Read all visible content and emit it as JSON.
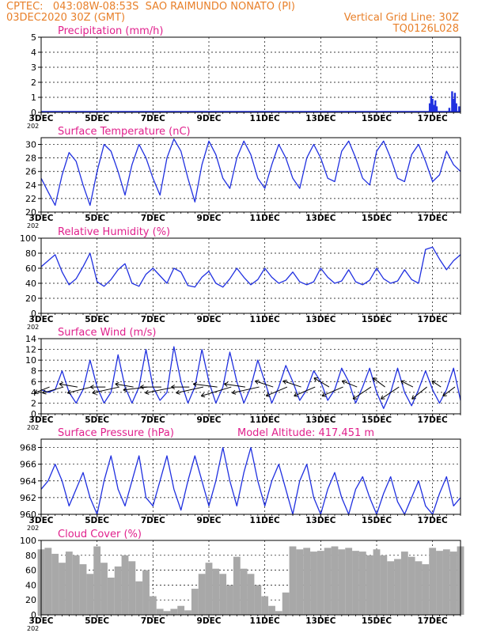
{
  "header": {
    "line1_left": "CPTEC:   043:08W-08:53S  SAO RAIMUNDO NONATO (PI)",
    "line2_left": "03DEC2020 30Z (GMT)",
    "line2_right": "Vertical Grid Line: 30Z",
    "line3_right": "TQ0126L028",
    "color": "#e8802a"
  },
  "colors": {
    "title": "#e0208c",
    "line": "#2030e0",
    "bars_precip": "#2030e0",
    "bars_cloud": "#a8a8a8",
    "vectors": "#000000"
  },
  "x_tick_labels": [
    "3DEC",
    "5DEC",
    "7DEC",
    "9DEC",
    "11DEC",
    "13DEC",
    "15DEC",
    "17DEC"
  ],
  "year_fragment": "202",
  "chart_data": [
    {
      "type": "bar",
      "title": "Precipitation (mm/h)",
      "ylim": [
        0,
        5
      ],
      "yticks": [
        "0",
        "1",
        "2",
        "3",
        "4",
        "5"
      ],
      "x_range_days": [
        3,
        18
      ],
      "values": [
        {
          "day": 16.9,
          "v": 0.6
        },
        {
          "day": 16.95,
          "v": 1.1
        },
        {
          "day": 17.0,
          "v": 0.9
        },
        {
          "day": 17.05,
          "v": 0.5
        },
        {
          "day": 17.1,
          "v": 0.8
        },
        {
          "day": 17.15,
          "v": 0.4
        },
        {
          "day": 17.6,
          "v": 0.3
        },
        {
          "day": 17.7,
          "v": 1.4
        },
        {
          "day": 17.75,
          "v": 0.9
        },
        {
          "day": 17.8,
          "v": 1.3
        },
        {
          "day": 17.85,
          "v": 0.6
        },
        {
          "day": 17.95,
          "v": 0.4
        }
      ]
    },
    {
      "type": "line",
      "title": "Surface Temperature (nC)",
      "ylim": [
        20,
        31
      ],
      "yticks": [
        "20",
        "22",
        "24",
        "26",
        "28",
        "30"
      ],
      "x_range_days": [
        3,
        18
      ],
      "x": [
        3.0,
        3.25,
        3.5,
        3.75,
        4.0,
        4.25,
        4.5,
        4.75,
        5.0,
        5.25,
        5.5,
        5.75,
        6.0,
        6.25,
        6.5,
        6.75,
        7.0,
        7.25,
        7.5,
        7.75,
        8.0,
        8.25,
        8.5,
        8.75,
        9.0,
        9.25,
        9.5,
        9.75,
        10.0,
        10.25,
        10.5,
        10.75,
        11.0,
        11.25,
        11.5,
        11.75,
        12.0,
        12.25,
        12.5,
        12.75,
        13.0,
        13.25,
        13.5,
        13.75,
        14.0,
        14.25,
        14.5,
        14.75,
        15.0,
        15.25,
        15.5,
        15.75,
        16.0,
        16.25,
        16.5,
        16.75,
        17.0,
        17.25,
        17.5,
        17.75,
        18.0
      ],
      "y": [
        25,
        23,
        21,
        25.5,
        28.8,
        27.5,
        24,
        21,
        26,
        30,
        29,
        26,
        22.5,
        27,
        30,
        28,
        25,
        22.5,
        28,
        30.8,
        29,
        25,
        21.5,
        27,
        30.5,
        28.5,
        25,
        23.5,
        28,
        30.5,
        28.5,
        25,
        23.5,
        27,
        30,
        28,
        25,
        23.5,
        28,
        30,
        28,
        25,
        24.5,
        29,
        30.5,
        28,
        25,
        24,
        29,
        30.5,
        28,
        25,
        24.5,
        28.5,
        30,
        27.5,
        24.5,
        25.5,
        29,
        27,
        26
      ]
    },
    {
      "type": "line",
      "title": "Relative Humidity (%)",
      "ylim": [
        0,
        100
      ],
      "yticks": [
        "0",
        "20",
        "40",
        "60",
        "80",
        "100"
      ],
      "x_range_days": [
        3,
        18
      ],
      "x": [
        3.0,
        3.25,
        3.5,
        3.75,
        4.0,
        4.25,
        4.5,
        4.75,
        5.0,
        5.25,
        5.5,
        5.75,
        6.0,
        6.25,
        6.5,
        6.75,
        7.0,
        7.25,
        7.5,
        7.75,
        8.0,
        8.25,
        8.5,
        8.75,
        9.0,
        9.25,
        9.5,
        9.75,
        10.0,
        10.25,
        10.5,
        10.75,
        11.0,
        11.25,
        11.5,
        11.75,
        12.0,
        12.25,
        12.5,
        12.75,
        13.0,
        13.25,
        13.5,
        13.75,
        14.0,
        14.25,
        14.5,
        14.75,
        15.0,
        15.25,
        15.5,
        15.75,
        16.0,
        16.25,
        16.5,
        16.75,
        17.0,
        17.25,
        17.5,
        17.75,
        18.0
      ],
      "y": [
        62,
        70,
        78,
        55,
        38,
        46,
        62,
        80,
        42,
        36,
        45,
        58,
        66,
        40,
        36,
        52,
        60,
        50,
        40,
        60,
        55,
        37,
        35,
        48,
        56,
        40,
        35,
        46,
        60,
        48,
        38,
        45,
        60,
        48,
        40,
        44,
        55,
        42,
        38,
        42,
        60,
        48,
        40,
        43,
        58,
        42,
        38,
        44,
        60,
        46,
        40,
        43,
        58,
        45,
        40,
        85,
        88,
        72,
        58,
        70,
        78
      ]
    },
    {
      "type": "line",
      "title": "Surface Wind (m/s)",
      "ylim": [
        0,
        14
      ],
      "yticks": [
        "0",
        "2",
        "4",
        "6",
        "8",
        "10",
        "12",
        "14"
      ],
      "x_range_days": [
        3,
        18
      ],
      "x": [
        3.0,
        3.25,
        3.5,
        3.75,
        4.0,
        4.25,
        4.5,
        4.75,
        5.0,
        5.25,
        5.5,
        5.75,
        6.0,
        6.25,
        6.5,
        6.75,
        7.0,
        7.25,
        7.5,
        7.75,
        8.0,
        8.25,
        8.5,
        8.75,
        9.0,
        9.25,
        9.5,
        9.75,
        10.0,
        10.25,
        10.5,
        10.75,
        11.0,
        11.25,
        11.5,
        11.75,
        12.0,
        12.25,
        12.5,
        12.75,
        13.0,
        13.25,
        13.5,
        13.75,
        14.0,
        14.25,
        14.5,
        14.75,
        15.0,
        15.25,
        15.5,
        15.75,
        16.0,
        16.25,
        16.5,
        16.75,
        17.0,
        17.25,
        17.5,
        17.75,
        18.0
      ],
      "y": [
        4.5,
        4,
        4.5,
        8,
        4,
        2,
        4.5,
        10,
        5,
        2,
        4,
        11,
        5,
        2,
        5,
        12,
        5,
        2.5,
        4,
        12.5,
        6,
        2,
        5,
        12,
        6,
        2,
        5,
        11.5,
        6,
        2,
        5,
        10,
        6,
        2,
        5,
        9,
        6,
        2.5,
        4.5,
        8,
        6,
        2.5,
        4.5,
        8.5,
        6,
        2,
        5,
        8.5,
        4,
        1,
        4,
        8.5,
        4,
        1.5,
        4.5,
        8,
        4.5,
        2,
        4.5,
        8.5,
        2.5
      ],
      "vectors": {
        "days": [
          3.3,
          3.8,
          4.3,
          4.8,
          5.3,
          5.8,
          6.3,
          6.8,
          7.3,
          7.8,
          8.3,
          8.8,
          9.3,
          9.8,
          10.3,
          10.8,
          11.3,
          11.8,
          12.3,
          12.8,
          13.3,
          13.8,
          14.3,
          14.8,
          15.3,
          15.8,
          16.3,
          16.8,
          17.3,
          17.8
        ],
        "u": [
          -0.5,
          -0.7,
          -0.6,
          -0.8,
          -0.5,
          -0.9,
          -0.6,
          -0.8,
          -0.7,
          -1.0,
          -0.6,
          -0.9,
          -0.8,
          -1.0,
          -0.7,
          -0.9,
          -0.6,
          -0.7,
          -0.6,
          -0.7,
          -0.5,
          -0.7,
          -0.5,
          -0.6,
          -0.4,
          -0.6,
          -0.4,
          -0.5,
          -0.3,
          -0.4
        ],
        "v": [
          -0.2,
          -0.2,
          0.1,
          -0.2,
          0.0,
          -0.2,
          0.1,
          -0.1,
          0.0,
          -0.2,
          0.0,
          -0.2,
          0.1,
          -0.3,
          0.1,
          -0.2,
          0.2,
          -0.3,
          0.2,
          -0.3,
          0.3,
          -0.3,
          0.2,
          -0.4,
          0.3,
          -0.4,
          0.2,
          -0.4,
          0.2,
          -0.3
        ]
      }
    },
    {
      "type": "line",
      "title": "Surface Pressure (hPa)",
      "annotation": "Model Altitude: 417.451 m",
      "ylim": [
        960,
        969
      ],
      "yticks": [
        "960",
        "962",
        "964",
        "966",
        "968"
      ],
      "x_range_days": [
        3,
        18
      ],
      "x": [
        3.0,
        3.25,
        3.5,
        3.75,
        4.0,
        4.25,
        4.5,
        4.75,
        5.0,
        5.25,
        5.5,
        5.75,
        6.0,
        6.25,
        6.5,
        6.75,
        7.0,
        7.25,
        7.5,
        7.75,
        8.0,
        8.25,
        8.5,
        8.75,
        9.0,
        9.25,
        9.5,
        9.75,
        10.0,
        10.25,
        10.5,
        10.75,
        11.0,
        11.25,
        11.5,
        11.75,
        12.0,
        12.25,
        12.5,
        12.75,
        13.0,
        13.25,
        13.5,
        13.75,
        14.0,
        14.25,
        14.5,
        14.75,
        15.0,
        15.25,
        15.5,
        15.75,
        16.0,
        16.25,
        16.5,
        16.75,
        17.0,
        17.25,
        17.5,
        17.75,
        18.0
      ],
      "y": [
        963,
        964,
        966,
        964,
        961,
        963,
        965,
        962,
        960,
        964,
        967,
        963,
        961,
        964,
        967,
        962,
        961,
        964,
        967,
        963,
        960.5,
        964,
        967,
        964,
        961,
        964,
        968,
        964,
        961,
        965,
        968,
        964,
        961,
        964,
        966,
        963,
        960,
        964,
        966,
        962,
        960,
        963,
        965,
        962,
        960,
        963,
        964.5,
        962,
        960,
        962.5,
        964.5,
        961.5,
        960,
        962,
        964,
        961,
        960,
        962.5,
        964.5,
        961,
        962
      ]
    },
    {
      "type": "bar",
      "title": "Cloud Cover (%)",
      "ylim": [
        0,
        100
      ],
      "yticks": [
        "0",
        "20",
        "40",
        "60",
        "80",
        "100"
      ],
      "x_range_days": [
        3,
        18
      ],
      "x": [
        3.0,
        3.25,
        3.5,
        3.75,
        4.0,
        4.25,
        4.5,
        4.75,
        5.0,
        5.25,
        5.5,
        5.75,
        6.0,
        6.25,
        6.5,
        6.75,
        7.0,
        7.25,
        7.5,
        7.75,
        8.0,
        8.25,
        8.5,
        8.75,
        9.0,
        9.25,
        9.5,
        9.75,
        10.0,
        10.25,
        10.5,
        10.75,
        11.0,
        11.25,
        11.5,
        11.75,
        12.0,
        12.25,
        12.5,
        12.75,
        13.0,
        13.25,
        13.5,
        13.75,
        14.0,
        14.25,
        14.5,
        14.75,
        15.0,
        15.25,
        15.5,
        15.75,
        16.0,
        16.25,
        16.5,
        16.75,
        17.0,
        17.25,
        17.5,
        17.75,
        18.0
      ],
      "y": [
        88,
        90,
        82,
        70,
        85,
        80,
        68,
        55,
        92,
        70,
        50,
        65,
        80,
        72,
        45,
        60,
        25,
        8,
        5,
        8,
        12,
        6,
        35,
        55,
        70,
        62,
        55,
        40,
        78,
        62,
        55,
        40,
        25,
        12,
        5,
        30,
        92,
        88,
        90,
        85,
        86,
        90,
        92,
        88,
        90,
        86,
        85,
        80,
        88,
        80,
        72,
        75,
        85,
        78,
        72,
        68,
        90,
        86,
        88,
        85,
        92
      ]
    }
  ]
}
